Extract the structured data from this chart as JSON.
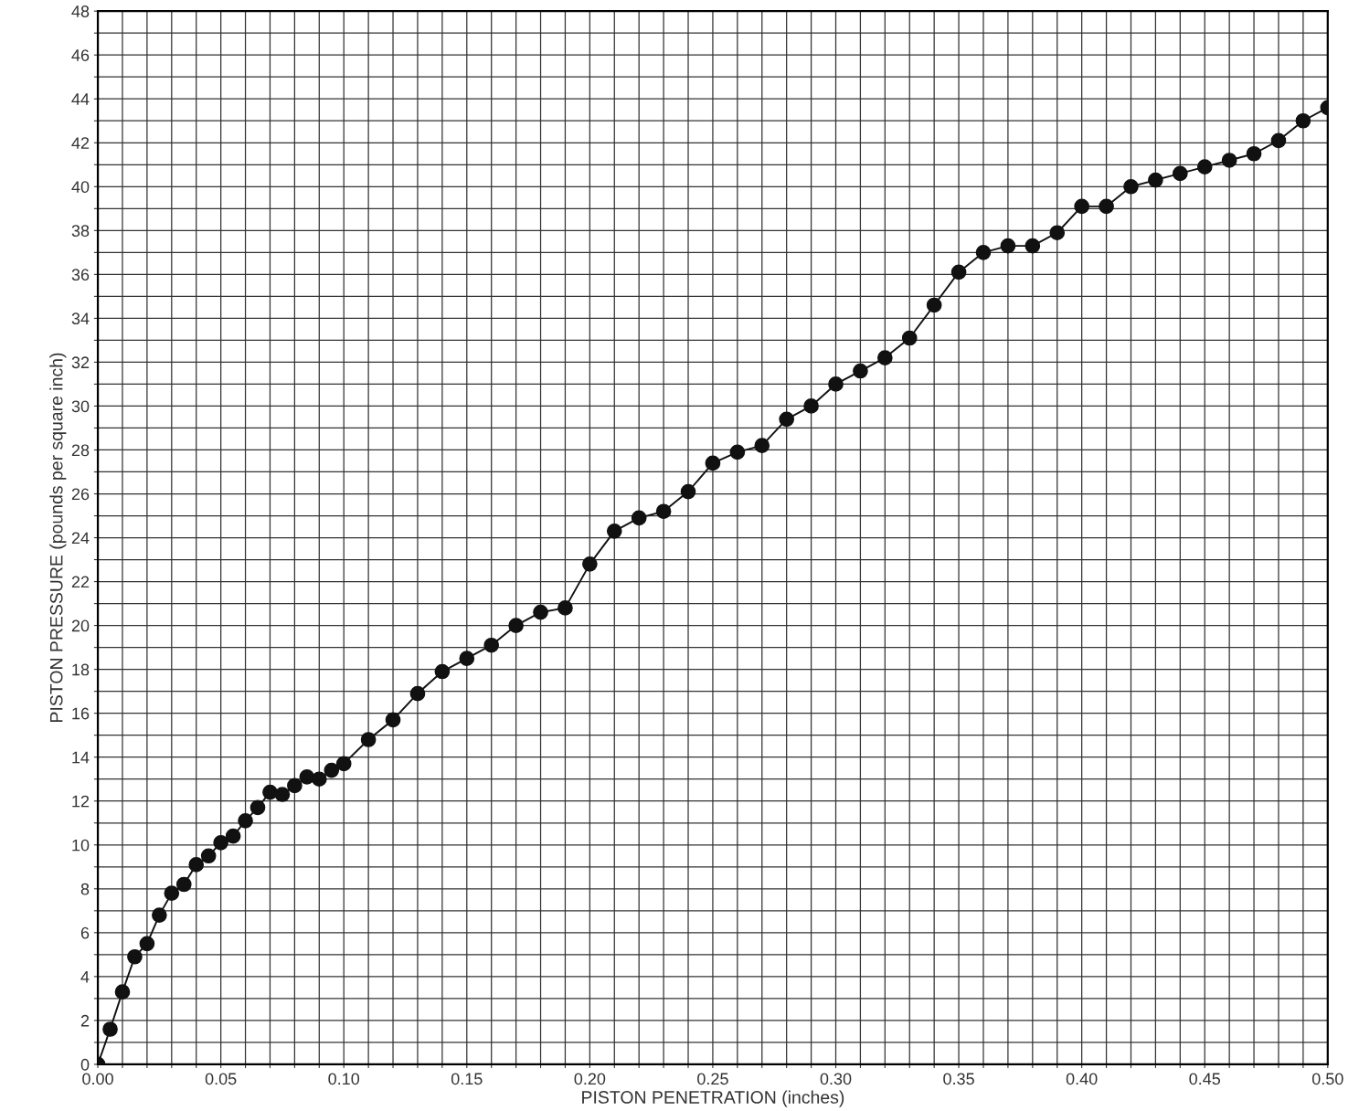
{
  "chart_data": {
    "type": "line",
    "xlabel": "PISTON PENETRATION (inches)",
    "ylabel": "PISTON PRESSURE (pounds per square inch)",
    "xlim": [
      0,
      0.5
    ],
    "ylim": [
      0,
      48
    ],
    "xticks": [
      {
        "value": 0,
        "label": "0.00"
      },
      {
        "value": 0.01,
        "label": null
      },
      {
        "value": 0.02,
        "label": null
      },
      {
        "value": 0.03,
        "label": null
      },
      {
        "value": 0.04,
        "label": null
      },
      {
        "value": 0.05,
        "label": "0.05"
      },
      {
        "value": 0.06,
        "label": null
      },
      {
        "value": 0.07,
        "label": null
      },
      {
        "value": 0.08,
        "label": null
      },
      {
        "value": 0.09,
        "label": null
      },
      {
        "value": 0.1,
        "label": "0.10"
      },
      {
        "value": 0.11,
        "label": null
      },
      {
        "value": 0.12,
        "label": null
      },
      {
        "value": 0.13,
        "label": null
      },
      {
        "value": 0.14,
        "label": null
      },
      {
        "value": 0.15,
        "label": "0.15"
      },
      {
        "value": 0.16,
        "label": null
      },
      {
        "value": 0.17,
        "label": null
      },
      {
        "value": 0.18,
        "label": null
      },
      {
        "value": 0.19,
        "label": null
      },
      {
        "value": 0.2,
        "label": "0.20"
      },
      {
        "value": 0.21,
        "label": null
      },
      {
        "value": 0.22,
        "label": null
      },
      {
        "value": 0.23,
        "label": null
      },
      {
        "value": 0.24,
        "label": null
      },
      {
        "value": 0.25,
        "label": "0.25"
      },
      {
        "value": 0.26,
        "label": null
      },
      {
        "value": 0.27,
        "label": null
      },
      {
        "value": 0.28,
        "label": null
      },
      {
        "value": 0.29,
        "label": null
      },
      {
        "value": 0.3,
        "label": "0.30"
      },
      {
        "value": 0.31,
        "label": null
      },
      {
        "value": 0.32,
        "label": null
      },
      {
        "value": 0.33,
        "label": null
      },
      {
        "value": 0.34,
        "label": null
      },
      {
        "value": 0.35,
        "label": "0.35"
      },
      {
        "value": 0.36,
        "label": null
      },
      {
        "value": 0.37,
        "label": null
      },
      {
        "value": 0.38,
        "label": null
      },
      {
        "value": 0.39,
        "label": null
      },
      {
        "value": 0.4,
        "label": "0.40"
      },
      {
        "value": 0.41,
        "label": null
      },
      {
        "value": 0.42,
        "label": null
      },
      {
        "value": 0.43,
        "label": null
      },
      {
        "value": 0.44,
        "label": null
      },
      {
        "value": 0.45,
        "label": "0.45"
      },
      {
        "value": 0.46,
        "label": null
      },
      {
        "value": 0.47,
        "label": null
      },
      {
        "value": 0.48,
        "label": null
      },
      {
        "value": 0.49,
        "label": null
      },
      {
        "value": 0.5,
        "label": "0.50"
      }
    ],
    "yticks": [
      0,
      {
        "value": 1,
        "label": null
      },
      2,
      {
        "value": 3,
        "label": null
      },
      4,
      {
        "value": 5,
        "label": null
      },
      6,
      {
        "value": 7,
        "label": null
      },
      8,
      {
        "value": 9,
        "label": null
      },
      10,
      {
        "value": 11,
        "label": null
      },
      12,
      {
        "value": 13,
        "label": null
      },
      14,
      {
        "value": 15,
        "label": null
      },
      16,
      {
        "value": 17,
        "label": null
      },
      18,
      {
        "value": 19,
        "label": null
      },
      20,
      {
        "value": 21,
        "label": null
      },
      22,
      {
        "value": 23,
        "label": null
      },
      24,
      {
        "value": 25,
        "label": null
      },
      26,
      {
        "value": 27,
        "label": null
      },
      28,
      {
        "value": 29,
        "label": null
      },
      30,
      {
        "value": 31,
        "label": null
      },
      32,
      {
        "value": 33,
        "label": null
      },
      34,
      {
        "value": 35,
        "label": null
      },
      36,
      {
        "value": 37,
        "label": null
      },
      38,
      {
        "value": 39,
        "label": null
      },
      40,
      {
        "value": 41,
        "label": null
      },
      42,
      {
        "value": 43,
        "label": null
      },
      44,
      {
        "value": 45,
        "label": null
      },
      46,
      {
        "value": 47,
        "label": null
      },
      48
    ],
    "grid": true,
    "marker": "circle",
    "line_style": "solid",
    "legend": false,
    "series": [
      {
        "color": "#111111",
        "x": [
          0,
          0.005,
          0.01,
          0.015,
          0.02,
          0.025,
          0.03,
          0.035,
          0.04,
          0.045,
          0.05,
          0.055,
          0.06,
          0.065,
          0.07,
          0.075,
          0.08,
          0.085,
          0.09,
          0.095,
          0.1,
          0.11,
          0.12,
          0.13,
          0.14,
          0.15,
          0.16,
          0.17,
          0.18,
          0.19,
          0.2,
          0.21,
          0.22,
          0.23,
          0.24,
          0.25,
          0.26,
          0.27,
          0.28,
          0.29,
          0.3,
          0.31,
          0.32,
          0.33,
          0.34,
          0.35,
          0.36,
          0.37,
          0.38,
          0.39,
          0.4,
          0.41,
          0.42,
          0.43,
          0.44,
          0.45,
          0.46,
          0.47,
          0.48,
          0.49,
          0.5
        ],
        "values": [
          0,
          1.6,
          3.3,
          4.9,
          5.5,
          6.8,
          7.8,
          8.2,
          9.1,
          9.5,
          10.1,
          10.4,
          11.1,
          11.7,
          12.4,
          12.3,
          12.7,
          13.1,
          13.0,
          13.4,
          13.7,
          14.8,
          15.7,
          16.9,
          17.9,
          18.5,
          19.1,
          20.0,
          20.6,
          20.8,
          22.8,
          24.3,
          24.9,
          25.2,
          26.1,
          27.4,
          27.9,
          28.2,
          29.4,
          30.0,
          31.0,
          31.6,
          32.2,
          33.1,
          34.6,
          36.1,
          37.0,
          37.3,
          37.3,
          37.9,
          39.1,
          39.1,
          40.0,
          40.3,
          40.6,
          40.9,
          41.2,
          41.5,
          42.1,
          43.0,
          43.6
        ]
      }
    ]
  }
}
